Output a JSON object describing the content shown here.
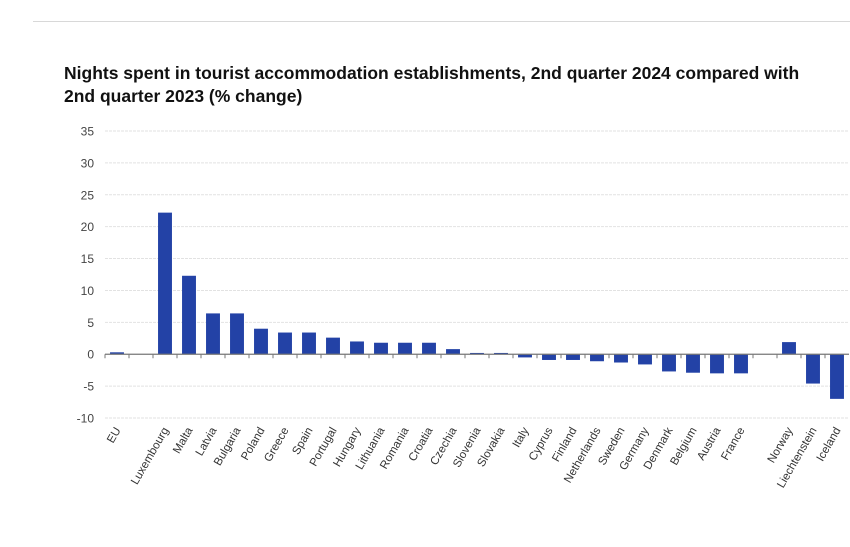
{
  "chart_data": {
    "type": "bar",
    "title": "Nights spent in tourist accommodation establishments, 2nd quarter 2024 compared with 2nd quarter 2023 (% change)",
    "xlabel": "",
    "ylabel": "",
    "ylim": [
      -10,
      35
    ],
    "yticks": [
      35,
      30,
      25,
      20,
      15,
      10,
      5,
      0,
      -5,
      -10
    ],
    "grid": true,
    "bar_color": "#2342a6",
    "categories": [
      "EU",
      "",
      "Luxembourg",
      "Malta",
      "Latvia",
      "Bulgaria",
      "Poland",
      "Greece",
      "Spain",
      "Portugal",
      "Hungary",
      "Lithuania",
      "Romania",
      "Croatia",
      "Czechia",
      "Slovenia",
      "Slovakia",
      "Italy",
      "Cyprus",
      "Finland",
      "Netherlands",
      "Sweden",
      "Germany",
      "Denmark",
      "Belgium",
      "Austria",
      "France",
      "",
      "Norway",
      "Liechtenstein",
      "Iceland"
    ],
    "values": [
      0.3,
      null,
      22.2,
      12.3,
      6.4,
      6.4,
      4.0,
      3.4,
      3.4,
      2.6,
      2.0,
      1.8,
      1.8,
      1.8,
      0.8,
      0.2,
      0.2,
      -0.5,
      -0.9,
      -0.9,
      -1.1,
      -1.3,
      -1.6,
      -2.7,
      -2.9,
      -3.0,
      -3.0,
      null,
      1.9,
      -4.6,
      -7.0
    ]
  }
}
